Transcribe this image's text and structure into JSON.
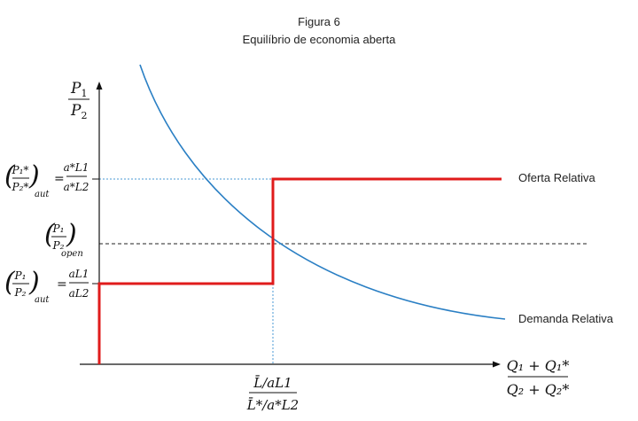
{
  "figure": {
    "title": "Figura 6",
    "subtitle": "Equilíbrio de economia aberta"
  },
  "axes": {
    "y_label_num": "P",
    "y_label_num_sub": "1",
    "y_label_den": "P",
    "y_label_den_sub": "2",
    "x_label_num": "Q₁ + Q₁*",
    "x_label_den": "Q₂ + Q₂*"
  },
  "curves": {
    "supply_label": "Oferta Relativa",
    "demand_label": "Demanda Relativa"
  },
  "annotations": {
    "autarky_foreign": {
      "lhs_num": "P₁*",
      "lhs_den": "P₂*",
      "lhs_sub": "aut",
      "eq": "=",
      "rhs_num": "a*L1",
      "rhs_den": "a*L2"
    },
    "open": {
      "num": "P₁",
      "den": "P₂",
      "sub": "open"
    },
    "autarky_home": {
      "lhs_num": "P₁",
      "lhs_den": "P₂",
      "lhs_sub": "aut",
      "eq": "=",
      "rhs_num": "aL1",
      "rhs_den": "aL2"
    },
    "x_tick_num": "L̄/aL1",
    "x_tick_den": "L̄*/a*L2"
  },
  "colors": {
    "supply": "#e01b1b",
    "demand": "#2a7fc4",
    "guide_blue": "#4a9ad6",
    "guide_black": "#222222",
    "axis": "#111111"
  }
}
